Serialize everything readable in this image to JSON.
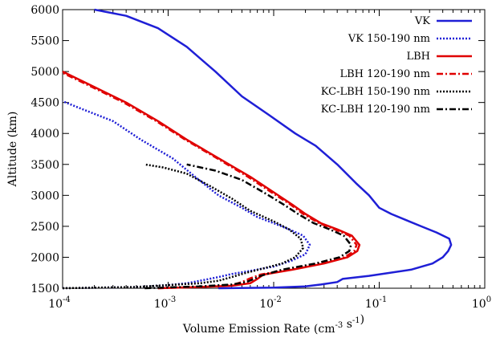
{
  "chart_data": {
    "type": "line",
    "title": "",
    "xlabel": "Volume Emission Rate (cm⁻³ s⁻¹)",
    "ylabel": "Altitude (km)",
    "xscale": "log",
    "xlim": [
      0.0001,
      1
    ],
    "ylim": [
      1500,
      6000
    ],
    "grid": false,
    "legend_position": "top-right",
    "x_ticks": [
      0.0001,
      0.001,
      0.01,
      0.1,
      1
    ],
    "x_tick_labels": [
      {
        "base": "10",
        "exp": "-4"
      },
      {
        "base": "10",
        "exp": "-3"
      },
      {
        "base": "10",
        "exp": "-2"
      },
      {
        "base": "10",
        "exp": "-1"
      },
      {
        "base": "10",
        "exp": "0"
      }
    ],
    "y_ticks": [
      1500,
      2000,
      2500,
      3000,
      3500,
      4000,
      4500,
      5000,
      5500,
      6000
    ],
    "y_tick_labels": [
      "1500",
      "2000",
      "2500",
      "3000",
      "3500",
      "4000",
      "4500",
      "5000",
      "5500",
      "6000"
    ],
    "series": [
      {
        "name": "VK",
        "color": "#1f1fd6",
        "style": "solid",
        "points": [
          [
            0.003,
            1500
          ],
          [
            0.01,
            1510
          ],
          [
            0.02,
            1530
          ],
          [
            0.028,
            1560
          ],
          [
            0.04,
            1600
          ],
          [
            0.045,
            1650
          ],
          [
            0.08,
            1700
          ],
          [
            0.2,
            1800
          ],
          [
            0.32,
            1900
          ],
          [
            0.4,
            2000
          ],
          [
            0.45,
            2100
          ],
          [
            0.48,
            2200
          ],
          [
            0.46,
            2300
          ],
          [
            0.35,
            2400
          ],
          [
            0.25,
            2500
          ],
          [
            0.18,
            2600
          ],
          [
            0.13,
            2700
          ],
          [
            0.1,
            2800
          ],
          [
            0.08,
            3000
          ],
          [
            0.06,
            3200
          ],
          [
            0.04,
            3500
          ],
          [
            0.025,
            3800
          ],
          [
            0.016,
            4000
          ],
          [
            0.009,
            4300
          ],
          [
            0.005,
            4600
          ],
          [
            0.0028,
            5000
          ],
          [
            0.0015,
            5400
          ],
          [
            0.0008,
            5700
          ],
          [
            0.0004,
            5900
          ],
          [
            0.0002,
            6000
          ]
        ]
      },
      {
        "name": "VK 150-190 nm",
        "color": "#1f1fd6",
        "style": "dotted",
        "points": [
          [
            0.0001,
            1500
          ],
          [
            0.0005,
            1520
          ],
          [
            0.001,
            1550
          ],
          [
            0.0015,
            1580
          ],
          [
            0.002,
            1620
          ],
          [
            0.003,
            1680
          ],
          [
            0.004,
            1730
          ],
          [
            0.006,
            1780
          ],
          [
            0.01,
            1850
          ],
          [
            0.015,
            1950
          ],
          [
            0.02,
            2050
          ],
          [
            0.022,
            2200
          ],
          [
            0.019,
            2350
          ],
          [
            0.014,
            2450
          ],
          [
            0.01,
            2550
          ],
          [
            0.007,
            2650
          ],
          [
            0.005,
            2800
          ],
          [
            0.003,
            3000
          ],
          [
            0.0018,
            3300
          ],
          [
            0.0011,
            3600
          ],
          [
            0.00055,
            3900
          ],
          [
            0.0003,
            4200
          ],
          [
            0.00015,
            4400
          ],
          [
            0.0001,
            4520
          ]
        ]
      },
      {
        "name": "LBH",
        "color": "#e00000",
        "style": "solid",
        "points": [
          [
            0.0008,
            1500
          ],
          [
            0.002,
            1520
          ],
          [
            0.004,
            1540
          ],
          [
            0.006,
            1580
          ],
          [
            0.007,
            1650
          ],
          [
            0.008,
            1720
          ],
          [
            0.015,
            1800
          ],
          [
            0.03,
            1900
          ],
          [
            0.05,
            2000
          ],
          [
            0.062,
            2100
          ],
          [
            0.065,
            2200
          ],
          [
            0.055,
            2350
          ],
          [
            0.04,
            2450
          ],
          [
            0.028,
            2550
          ],
          [
            0.02,
            2700
          ],
          [
            0.015,
            2850
          ],
          [
            0.01,
            3050
          ],
          [
            0.006,
            3300
          ],
          [
            0.003,
            3600
          ],
          [
            0.0015,
            3900
          ],
          [
            0.0008,
            4200
          ],
          [
            0.0004,
            4500
          ],
          [
            0.0002,
            4750
          ],
          [
            0.0001,
            5000
          ]
        ]
      },
      {
        "name": "LBH 120-190 nm",
        "color": "#e00000",
        "style": "dashdot",
        "points": [
          [
            0.0008,
            1500
          ],
          [
            0.002,
            1520
          ],
          [
            0.004,
            1550
          ],
          [
            0.005,
            1600
          ],
          [
            0.006,
            1660
          ],
          [
            0.0075,
            1720
          ],
          [
            0.014,
            1800
          ],
          [
            0.028,
            1900
          ],
          [
            0.047,
            2000
          ],
          [
            0.058,
            2100
          ],
          [
            0.061,
            2200
          ],
          [
            0.052,
            2350
          ],
          [
            0.038,
            2450
          ],
          [
            0.027,
            2550
          ],
          [
            0.019,
            2700
          ],
          [
            0.0145,
            2850
          ],
          [
            0.0095,
            3050
          ],
          [
            0.0057,
            3300
          ],
          [
            0.0029,
            3600
          ],
          [
            0.00145,
            3900
          ],
          [
            0.00077,
            4200
          ],
          [
            0.00038,
            4500
          ],
          [
            0.00019,
            4750
          ],
          [
            0.0001,
            4980
          ]
        ]
      },
      {
        "name": "KC-LBH 150-190 nm",
        "color": "#000000",
        "style": "dotted",
        "points": [
          [
            0.0001,
            1500
          ],
          [
            0.0005,
            1520
          ],
          [
            0.001,
            1550
          ],
          [
            0.002,
            1580
          ],
          [
            0.003,
            1620
          ],
          [
            0.004,
            1680
          ],
          [
            0.0055,
            1750
          ],
          [
            0.008,
            1820
          ],
          [
            0.012,
            1900
          ],
          [
            0.016,
            2000
          ],
          [
            0.019,
            2150
          ],
          [
            0.018,
            2300
          ],
          [
            0.014,
            2450
          ],
          [
            0.01,
            2580
          ],
          [
            0.006,
            2750
          ],
          [
            0.004,
            2950
          ],
          [
            0.0025,
            3150
          ],
          [
            0.0015,
            3350
          ],
          [
            0.0009,
            3450
          ],
          [
            0.0006,
            3500
          ]
        ]
      },
      {
        "name": "KC-LBH 120-190 nm",
        "color": "#000000",
        "style": "dashdot",
        "points": [
          [
            0.0006,
            1500
          ],
          [
            0.002,
            1530
          ],
          [
            0.004,
            1560
          ],
          [
            0.0055,
            1600
          ],
          [
            0.0065,
            1650
          ],
          [
            0.0075,
            1700
          ],
          [
            0.012,
            1800
          ],
          [
            0.025,
            1900
          ],
          [
            0.042,
            2000
          ],
          [
            0.052,
            2100
          ],
          [
            0.054,
            2200
          ],
          [
            0.046,
            2350
          ],
          [
            0.034,
            2450
          ],
          [
            0.024,
            2550
          ],
          [
            0.017,
            2700
          ],
          [
            0.0125,
            2850
          ],
          [
            0.008,
            3050
          ],
          [
            0.005,
            3250
          ],
          [
            0.0028,
            3400
          ],
          [
            0.0015,
            3500
          ]
        ]
      }
    ]
  }
}
